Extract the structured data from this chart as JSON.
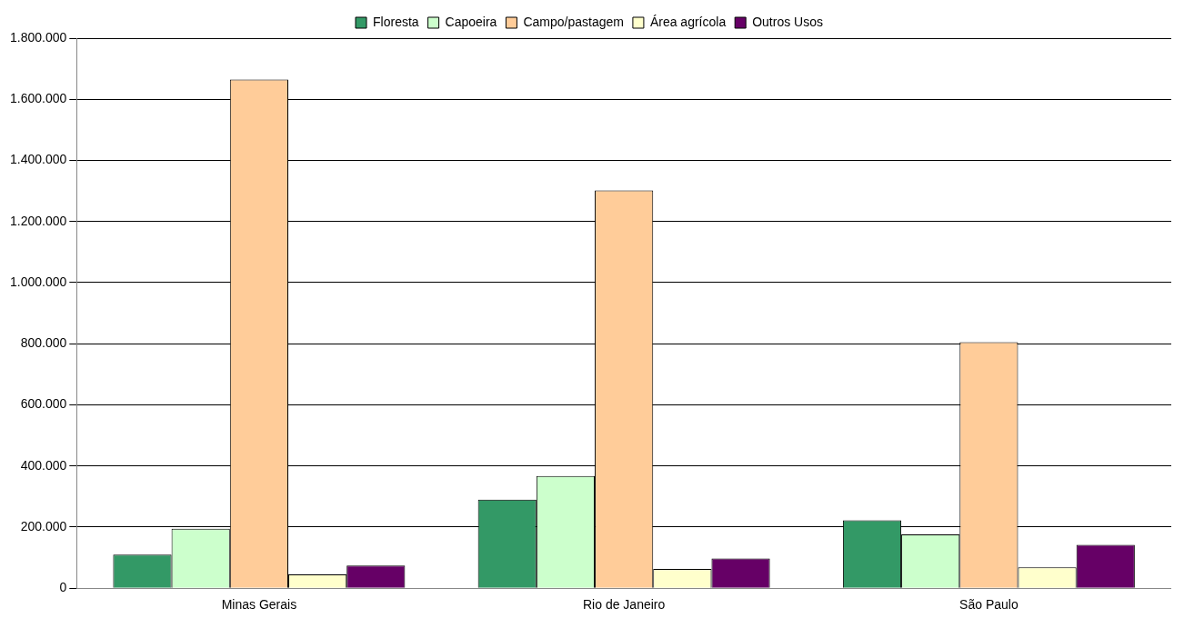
{
  "chart_data": {
    "type": "bar",
    "categories": [
      "Minas Gerais",
      "Rio de Janeiro",
      "São Paulo"
    ],
    "series": [
      {
        "name": "Floresta",
        "color": "#339966",
        "values": [
          110000,
          290000,
          222000
        ]
      },
      {
        "name": "Capoeira",
        "color": "#ccffcc",
        "values": [
          195000,
          367000,
          176000
        ]
      },
      {
        "name": "Campo/pastagem",
        "color": "#ffcc99",
        "values": [
          1665000,
          1302000,
          805000
        ]
      },
      {
        "name": "Área agrícola",
        "color": "#ffffcc",
        "values": [
          45000,
          63000,
          68000
        ]
      },
      {
        "name": "Outros Usos",
        "color": "#660066",
        "values": [
          74000,
          97000,
          142000
        ]
      }
    ],
    "ylim": [
      0,
      1800000
    ],
    "yticks": [
      {
        "value": 0,
        "label": "0"
      },
      {
        "value": 200000,
        "label": "200.000"
      },
      {
        "value": 400000,
        "label": "400.000"
      },
      {
        "value": 600000,
        "label": "600.000"
      },
      {
        "value": 800000,
        "label": "800.000"
      },
      {
        "value": 1000000,
        "label": "1.000.000"
      },
      {
        "value": 1200000,
        "label": "1.200.000"
      },
      {
        "value": 1400000,
        "label": "1.400.000"
      },
      {
        "value": 1600000,
        "label": "1.600.000"
      },
      {
        "value": 1800000,
        "label": "1.800.000"
      }
    ],
    "grid": "y",
    "legend": "top"
  }
}
